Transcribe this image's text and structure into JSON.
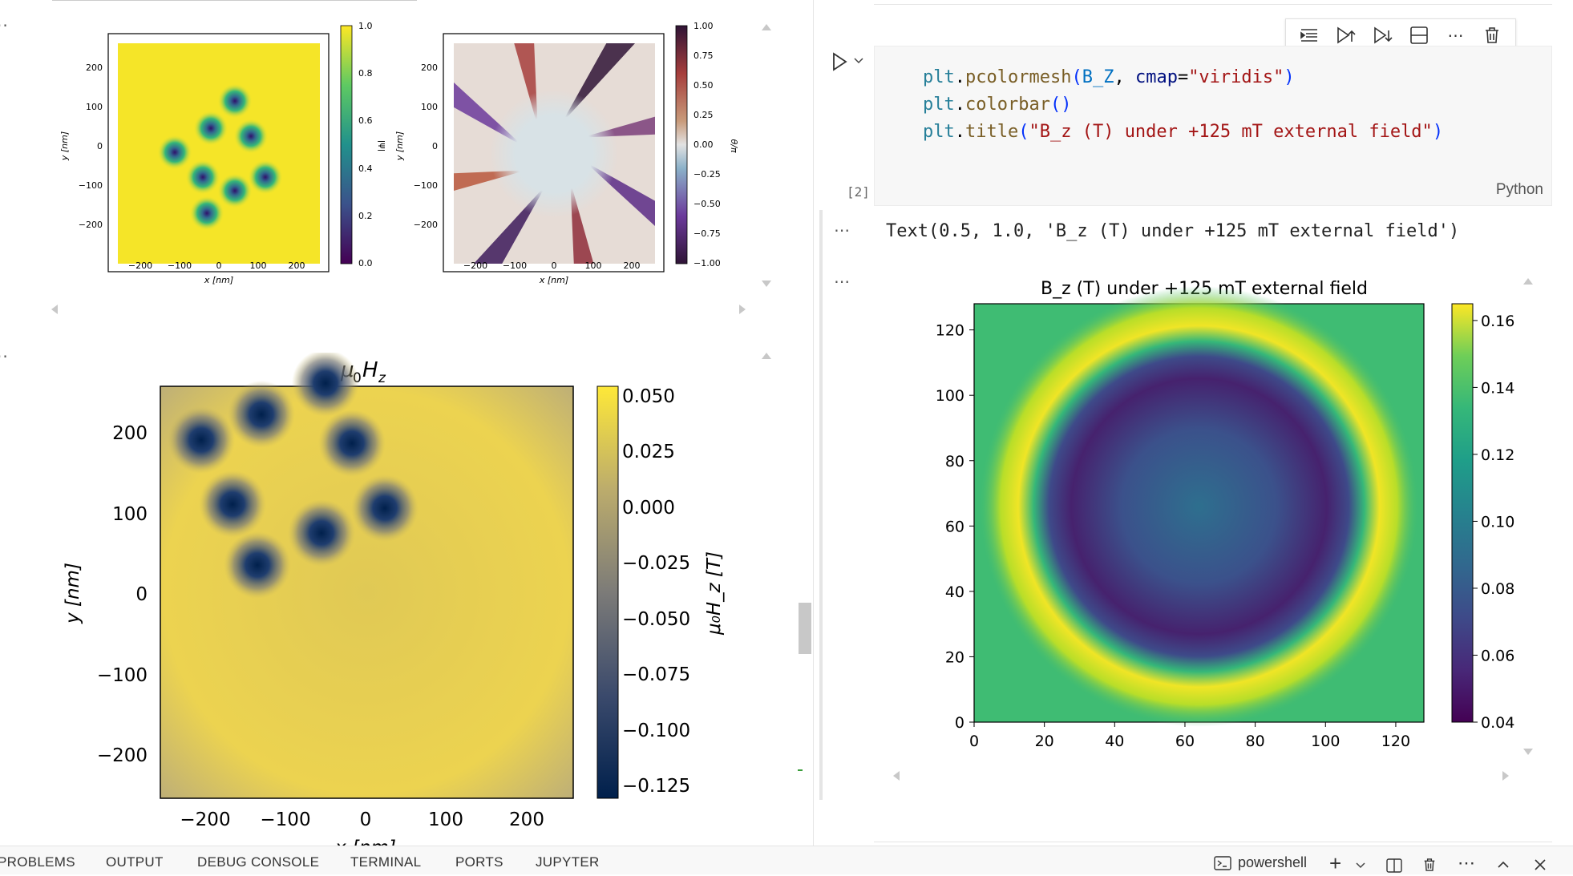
{
  "left_pane": {
    "top_plots": {
      "psi_plot": {
        "xlabel": "x [nm]",
        "ylabel": "y [nm]",
        "colorbar_label": "|ψ|",
        "x_ticks": [
          "−200",
          "−100",
          "0",
          "100",
          "200"
        ],
        "y_ticks": [
          "200",
          "100",
          "0",
          "−100",
          "−200"
        ],
        "colorbar_ticks": [
          "1.0",
          "0.8",
          "0.6",
          "0.4",
          "0.2",
          "0.0"
        ]
      },
      "phase_plot": {
        "xlabel": "x [nm]",
        "ylabel": "y [nm]",
        "colorbar_label": "θ/π",
        "x_ticks": [
          "−200",
          "−100",
          "0",
          "100",
          "200"
        ],
        "y_ticks": [
          "200",
          "100",
          "0",
          "−100",
          "−200"
        ],
        "colorbar_ticks": [
          "1.00",
          "0.75",
          "0.50",
          "0.25",
          "0.00",
          "−0.25",
          "−0.50",
          "−0.75",
          "−1.00"
        ]
      }
    },
    "field_plot": {
      "title_main": "μ",
      "title_sub0": "0",
      "title_h": "H",
      "title_subz": "z",
      "ylabel": "y [nm]",
      "xlabel": "x [nm]",
      "colorbar_label": "μ₀H_z [T]",
      "x_ticks": [
        "−200",
        "−100",
        "0",
        "100",
        "200"
      ],
      "y_ticks": [
        "200",
        "100",
        "0",
        "−100",
        "−200"
      ],
      "colorbar_ticks": [
        "0.050",
        "0.025",
        "0.000",
        "−0.025",
        "−0.050",
        "−0.075",
        "−0.100",
        "−0.125"
      ]
    }
  },
  "right_pane": {
    "cell": {
      "toolbar_icons": [
        "execute-above-icon",
        "execute-cell-above-icon",
        "execute-cell-below-icon",
        "split-cell-icon",
        "more-icon",
        "delete-icon"
      ],
      "code_lines": [
        [
          {
            "t": "plt",
            "c": "#267f99"
          },
          {
            "t": ".",
            "c": "#000"
          },
          {
            "t": "pcolormesh",
            "c": "#795e26"
          },
          {
            "t": "(",
            "c": "#0431fa"
          },
          {
            "t": "B_Z",
            "c": "#0070c1"
          },
          {
            "t": ", ",
            "c": "#000"
          },
          {
            "t": "cmap",
            "c": "#001080"
          },
          {
            "t": "=",
            "c": "#000"
          },
          {
            "t": "\"viridis\"",
            "c": "#a31515"
          },
          {
            "t": ")",
            "c": "#0431fa"
          }
        ],
        [
          {
            "t": "plt",
            "c": "#267f99"
          },
          {
            "t": ".",
            "c": "#000"
          },
          {
            "t": "colorbar",
            "c": "#795e26"
          },
          {
            "t": "()",
            "c": "#0431fa"
          }
        ],
        [
          {
            "t": "plt",
            "c": "#267f99"
          },
          {
            "t": ".",
            "c": "#000"
          },
          {
            "t": "title",
            "c": "#795e26"
          },
          {
            "t": "(",
            "c": "#0431fa"
          },
          {
            "t": "\"B_z (T) under +125 mT external field\"",
            "c": "#a31515"
          },
          {
            "t": ")",
            "c": "#0431fa"
          }
        ]
      ],
      "execution_count": "[2]",
      "language": "Python"
    },
    "output_text": "Text(0.5, 1.0, 'B_z (T) under +125 mT external field')",
    "output_ellipsis": "...",
    "chart_data": {
      "type": "heatmap",
      "title": "B_z (T) under +125 mT external field",
      "x_ticks": [
        0,
        20,
        40,
        60,
        80,
        100,
        120
      ],
      "y_ticks": [
        0,
        20,
        40,
        60,
        80,
        100,
        120
      ],
      "xlim": [
        0,
        128
      ],
      "ylim": [
        0,
        128
      ],
      "colormap": "viridis",
      "colorbar_ticks": [
        0.16,
        0.14,
        0.12,
        0.1,
        0.08,
        0.06,
        0.04
      ],
      "colorbar_range": [
        0.04,
        0.165
      ],
      "background_value": 0.125,
      "ring_peak_value": 0.165,
      "core_min_value": 0.04,
      "core_center_value": 0.085,
      "center": [
        64,
        66
      ]
    }
  },
  "bottom_panel": {
    "tabs": [
      "PROBLEMS",
      "OUTPUT",
      "DEBUG CONSOLE",
      "TERMINAL",
      "PORTS",
      "JUPYTER"
    ],
    "terminal_name": "powershell"
  }
}
